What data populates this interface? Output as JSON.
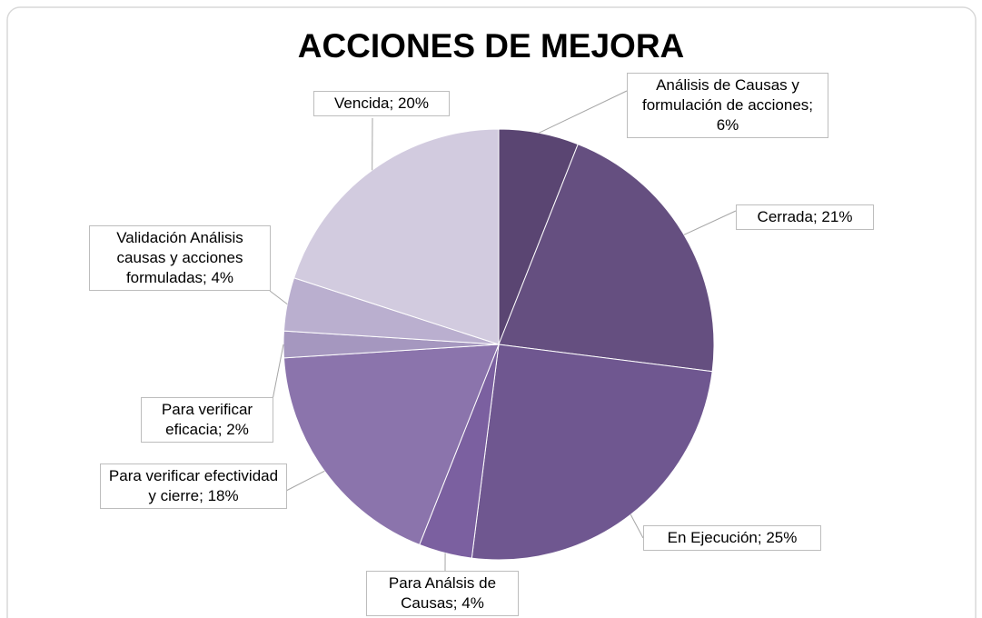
{
  "chart_data": {
    "type": "pie",
    "title": "ACCIONES DE MEJORA",
    "values": [
      6,
      21,
      25,
      4,
      18,
      2,
      4,
      20
    ],
    "value_labels": [
      "Análisis de Causas y formulación de acciones; 6%",
      "Cerrada; 21%",
      "En Ejecución; 25%",
      "Para Análsis de Causas; 4%",
      "Para verificar efectividad y cierre; 18%",
      "Para verificar eficacia; 2%",
      "Validación Análisis causas y acciones formuladas; 4%",
      "Vencida; 20%"
    ],
    "colors": [
      "#5a4572",
      "#654f80",
      "#6f5790",
      "#7b60a0",
      "#8b74ac",
      "#a597bf",
      "#baafcf",
      "#d2cbdf"
    ]
  }
}
